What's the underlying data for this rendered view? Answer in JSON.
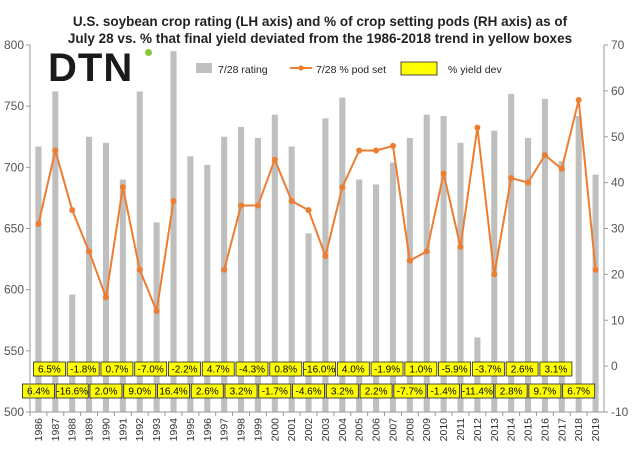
{
  "title": {
    "line1": "U.S. soybean crop rating (LH axis) and % of crop setting pods (RH axis) as of",
    "line2": "July 28 vs. % that final yield deviated from the 1986-2018 trend in yellow boxes"
  },
  "logo": {
    "text": "DTN",
    "dot_color": "#8cc63f"
  },
  "chart_data": {
    "type": "bar",
    "categories": [
      "1986",
      "1987",
      "1988",
      "1989",
      "1990",
      "1991",
      "1992",
      "1993",
      "1994",
      "1995",
      "1996",
      "1997",
      "1998",
      "1999",
      "2000",
      "2001",
      "2002",
      "2003",
      "2004",
      "2005",
      "2006",
      "2007",
      "2008",
      "2009",
      "2010",
      "2011",
      "2012",
      "2013",
      "2014",
      "2015",
      "2016",
      "2017",
      "2018",
      "2019"
    ],
    "series": [
      {
        "name": "7/28 rating",
        "type": "bar",
        "axis": "left",
        "color": "#bfbfbf",
        "values": [
          717,
          762,
          596,
          725,
          720,
          690,
          762,
          655,
          795,
          709,
          702,
          725,
          733,
          724,
          743,
          717,
          646,
          740,
          757,
          690,
          686,
          704,
          724,
          743,
          742,
          720,
          561,
          730,
          760,
          724,
          756,
          705,
          742,
          694
        ]
      },
      {
        "name": "7/28 % pod set",
        "type": "line",
        "axis": "right",
        "color": "#ed7d31",
        "values": [
          31,
          47,
          34,
          25,
          15,
          39,
          21,
          12,
          36,
          null,
          null,
          21,
          35,
          35,
          45,
          36,
          34,
          24,
          39,
          47,
          47,
          48,
          23,
          25,
          42,
          26,
          52,
          20,
          41,
          40,
          46,
          43,
          58,
          21
        ]
      }
    ],
    "yield_dev": {
      "name": "% yield dev",
      "color": "#ffff00",
      "labels": [
        "6.4%",
        "6.5%",
        "-16.6%",
        "-1.8%",
        "2.0%",
        "0.7%",
        "9.0%",
        "-7.0%",
        "16.4%",
        "-2.2%",
        "2.6%",
        "4.7%",
        "3.2%",
        "-4.3%",
        "-1.7%",
        "0.8%",
        "-4.6%",
        "-16.0%",
        "3.2%",
        "4.0%",
        "2.2%",
        "-1.9%",
        "-7.7%",
        "1.0%",
        "-1.4%",
        "-5.9%",
        "-11.4%",
        "-3.7%",
        "2.8%",
        "2.6%",
        "9.7%",
        "3.1%",
        "6.7%",
        ""
      ]
    },
    "left_axis": {
      "min": 500,
      "max": 800,
      "ticks": [
        500,
        550,
        600,
        650,
        700,
        750,
        800
      ]
    },
    "right_axis": {
      "min": -10,
      "max": 70,
      "ticks": [
        -10,
        0,
        10,
        20,
        30,
        40,
        50,
        60,
        70
      ]
    },
    "xlabel": "",
    "ylabel": "",
    "grid": false,
    "legend_position": "top"
  }
}
